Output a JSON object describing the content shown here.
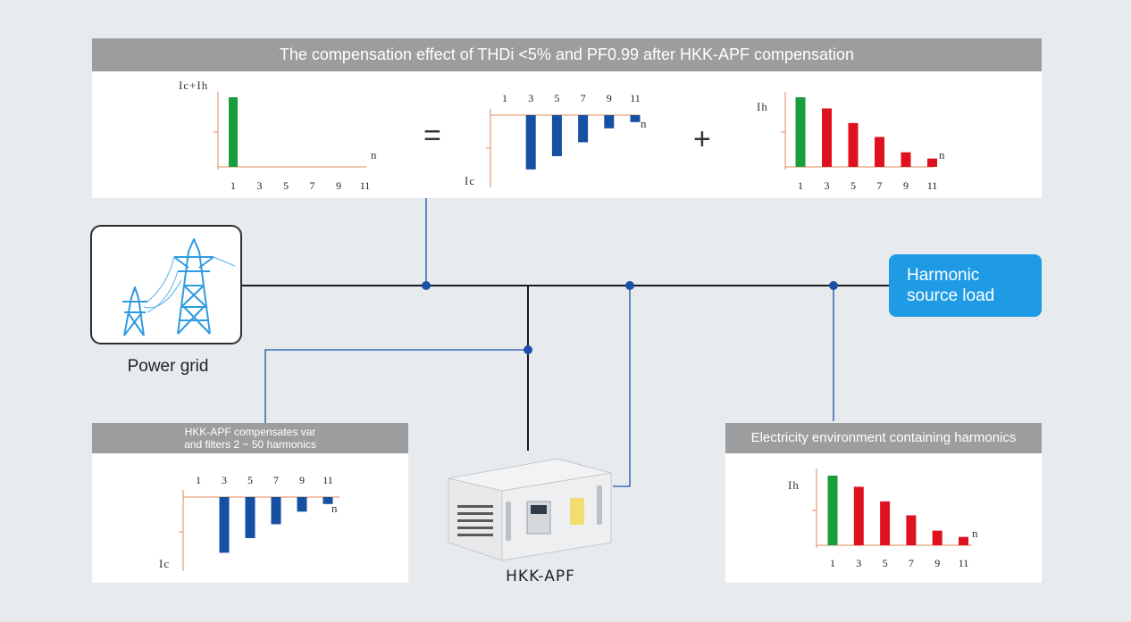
{
  "top_panel": {
    "title": "The compensation effect of THDi <5% and PF0.99 after HKK-APF compensation"
  },
  "operators": {
    "equals": "=",
    "plus": "+"
  },
  "power_grid": {
    "label": "Power grid",
    "icon": "transmission-tower-icon"
  },
  "load": {
    "line1": "Harmonic",
    "line2": "source load"
  },
  "apf": {
    "label": "HKK-APF"
  },
  "apf_panel": {
    "title_line1": "HKK-APF compensates var",
    "title_line2": "and filters 2 ~ 50 harmonics"
  },
  "env_panel": {
    "title": "Electricity environment containing harmonics"
  },
  "colors": {
    "fundamental": "#1a9e3b",
    "harmonic": "#e0111e",
    "compensation": "#1650a2",
    "wire": "#1c4fa8",
    "axis": "#e0895a"
  },
  "chart_data": [
    {
      "id": "ic-plus-ih",
      "type": "bar",
      "ylabel": "Ic+Ih",
      "xlabel": "n",
      "categories": [
        "1",
        "3",
        "5",
        "7",
        "9",
        "11"
      ],
      "series": [
        {
          "values": [
            1.0,
            0,
            0,
            0,
            0,
            0
          ]
        }
      ]
    },
    {
      "id": "ic-top",
      "type": "bar",
      "ylabel": "Ic",
      "xlabel": "n",
      "categories": [
        "1",
        "3",
        "5",
        "7",
        "9",
        "11"
      ],
      "series": [
        {
          "values": [
            0,
            -0.78,
            -0.59,
            -0.39,
            -0.19,
            -0.1
          ]
        }
      ]
    },
    {
      "id": "ih-top",
      "type": "bar",
      "ylabel": "Ih",
      "xlabel": "n",
      "categories": [
        "1",
        "3",
        "5",
        "7",
        "9",
        "11"
      ],
      "series": [
        {
          "values": [
            1.0,
            0.84,
            0.63,
            0.43,
            0.21,
            0.12
          ]
        }
      ]
    },
    {
      "id": "ic-apf",
      "type": "bar",
      "ylabel": "Ic",
      "xlabel": "n",
      "categories": [
        "1",
        "3",
        "5",
        "7",
        "9",
        "11"
      ],
      "series": [
        {
          "values": [
            0,
            -0.8,
            -0.59,
            -0.39,
            -0.21,
            -0.1
          ]
        }
      ]
    },
    {
      "id": "ih-env",
      "type": "bar",
      "ylabel": "Ih",
      "xlabel": "n",
      "categories": [
        "1",
        "3",
        "5",
        "7",
        "9",
        "11"
      ],
      "series": [
        {
          "values": [
            1.0,
            0.84,
            0.63,
            0.43,
            0.21,
            0.12
          ]
        }
      ]
    }
  ]
}
